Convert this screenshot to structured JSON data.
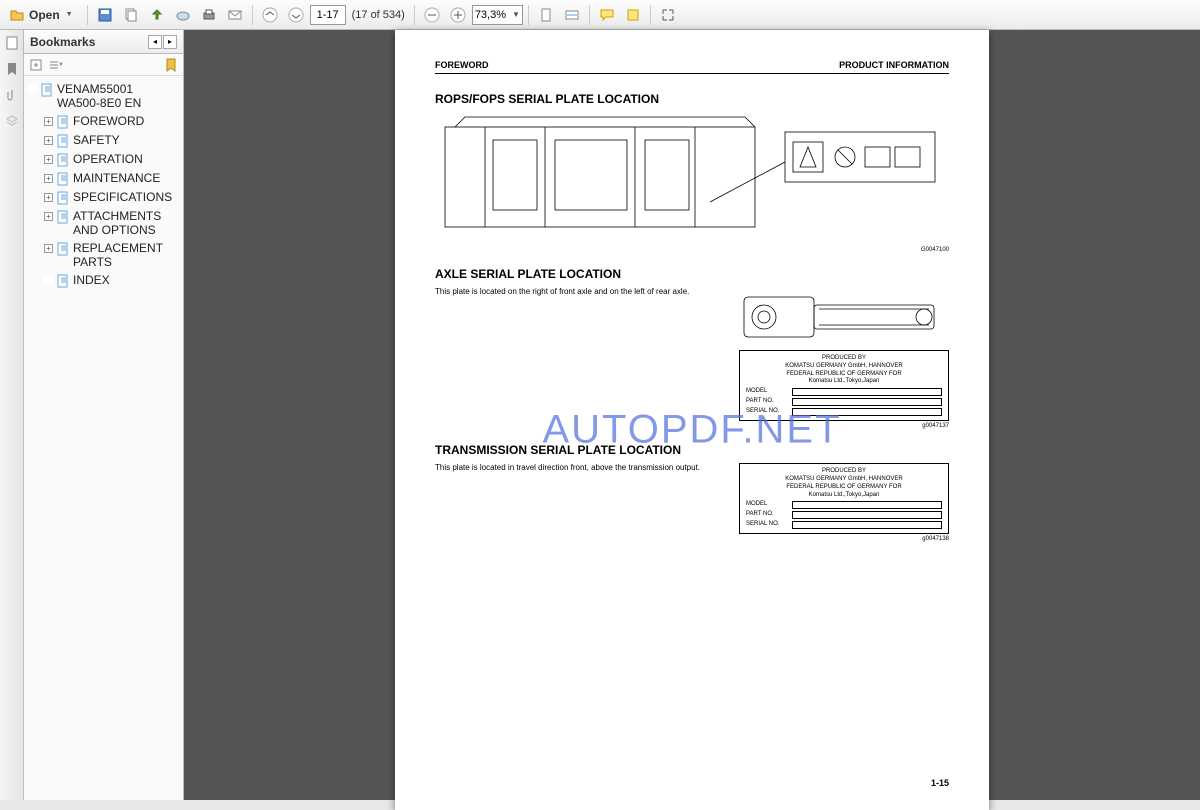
{
  "toolbar": {
    "open_label": "Open",
    "page_input": "1-17",
    "page_total_label": "(17 of 534)",
    "zoom_value": "73,3%"
  },
  "sidebar": {
    "title": "Bookmarks",
    "items": [
      {
        "label": "VENAM55001 WA500-8E0 EN",
        "expandable": false,
        "level": 0
      },
      {
        "label": "FOREWORD",
        "expandable": true,
        "level": 1
      },
      {
        "label": "SAFETY",
        "expandable": true,
        "level": 1
      },
      {
        "label": "OPERATION",
        "expandable": true,
        "level": 1
      },
      {
        "label": "MAINTENANCE",
        "expandable": true,
        "level": 1
      },
      {
        "label": "SPECIFICATIONS",
        "expandable": true,
        "level": 1
      },
      {
        "label": "ATTACHMENTS AND OPTIONS",
        "expandable": true,
        "level": 1
      },
      {
        "label": "REPLACEMENT PARTS",
        "expandable": true,
        "level": 1
      },
      {
        "label": "INDEX",
        "expandable": false,
        "level": 1
      }
    ]
  },
  "page": {
    "header_left": "FOREWORD",
    "header_right": "PRODUCT INFORMATION",
    "page_number": "1-15",
    "watermark": "AUTOPDF.NET",
    "sections": {
      "rops": {
        "title": "ROPS/FOPS SERIAL PLATE LOCATION",
        "fig_id": "G0047100"
      },
      "axle": {
        "title": "AXLE SERIAL PLATE LOCATION",
        "text": "This plate is located on the right of front axle and on the left of rear axle.",
        "fig_id": "g0047137"
      },
      "trans": {
        "title": "TRANSMISSION SERIAL PLATE LOCATION",
        "text": "This plate is located in travel direction front, above the transmission output.",
        "fig_id": "g0047138"
      }
    },
    "plate": {
      "line1": "PRODUCED BY",
      "line2": "KOMATSU GERMANY GmbH, HANNOVER",
      "line3": "FEDERAL REPUBLIC OF GERMANY FOR",
      "line4": "Komatsu Ltd.,Tokyo,Japan",
      "rows": [
        "MODEL",
        "PART NO.",
        "SERIAL NO."
      ]
    }
  },
  "colors": {
    "toolbar_border": "#bbb",
    "viewer_bg": "#555",
    "watermark": "rgba(80,110,220,0.7)"
  }
}
